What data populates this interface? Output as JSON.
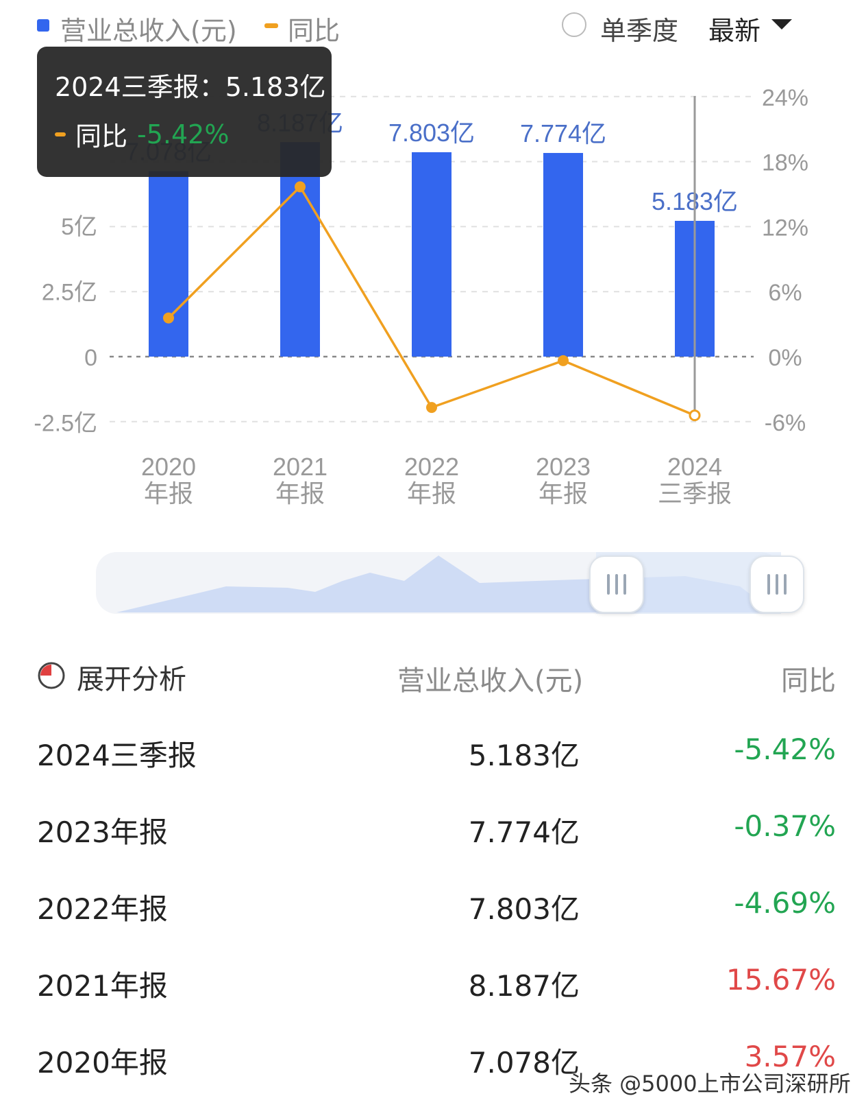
{
  "legend": {
    "revenue_label": "营业总收入(元)",
    "yoy_label": "同比",
    "revenue_color": "#3366ee",
    "yoy_color": "#f0a020"
  },
  "controls": {
    "single_quarter_label": "单季度",
    "period_label": "最新"
  },
  "tooltip": {
    "title": "2024三季报：5.183亿",
    "yoy_label": "同比",
    "yoy_value": "-5.42%"
  },
  "chart_data": {
    "type": "bar",
    "categories": [
      [
        "2020",
        "年报"
      ],
      [
        "2021",
        "年报"
      ],
      [
        "2022",
        "年报"
      ],
      [
        "2023",
        "年报"
      ],
      [
        "2024",
        "三季报"
      ]
    ],
    "series": [
      {
        "name": "营业总收入(元)",
        "type": "bar",
        "unit": "亿",
        "values": [
          7.078,
          8.187,
          7.803,
          7.774,
          5.183
        ],
        "labels": [
          "7.078亿",
          "8.187亿",
          "7.803亿",
          "7.774亿",
          "5.183亿"
        ]
      },
      {
        "name": "同比",
        "type": "line",
        "unit": "%",
        "values": [
          3.57,
          15.67,
          -4.69,
          -0.37,
          -5.42
        ]
      }
    ],
    "y_left": {
      "range": [
        -2.5,
        10
      ],
      "ticks": [
        -2.5,
        0,
        2.5,
        5
      ],
      "tick_labels": [
        "-2.5亿",
        "0",
        "2.5亿",
        "5亿"
      ]
    },
    "y_right": {
      "range": [
        -6,
        24
      ],
      "ticks": [
        -6,
        0,
        6,
        12,
        18,
        24
      ],
      "tick_labels": [
        "-6%",
        "0%",
        "6%",
        "12%",
        "18%",
        "24%"
      ]
    },
    "grid": true,
    "legend_position": "top-left"
  },
  "table": {
    "header": {
      "analysis_label": "展开分析",
      "revenue_label": "营业总收入(元)",
      "yoy_label": "同比"
    },
    "rows": [
      {
        "period": "2024三季报",
        "revenue": "5.183亿",
        "yoy": "-5.42%",
        "color": "#22a552"
      },
      {
        "period": "2023年报",
        "revenue": "7.774亿",
        "yoy": "-0.37%",
        "color": "#22a552"
      },
      {
        "period": "2022年报",
        "revenue": "7.803亿",
        "yoy": "-4.69%",
        "color": "#22a552"
      },
      {
        "period": "2021年报",
        "revenue": "8.187亿",
        "yoy": "15.67%",
        "color": "#e04848"
      },
      {
        "period": "2020年报",
        "revenue": "7.078亿",
        "yoy": "3.57%",
        "color": "#e04848"
      }
    ]
  },
  "watermark": "头条 @5000上市公司深研所"
}
